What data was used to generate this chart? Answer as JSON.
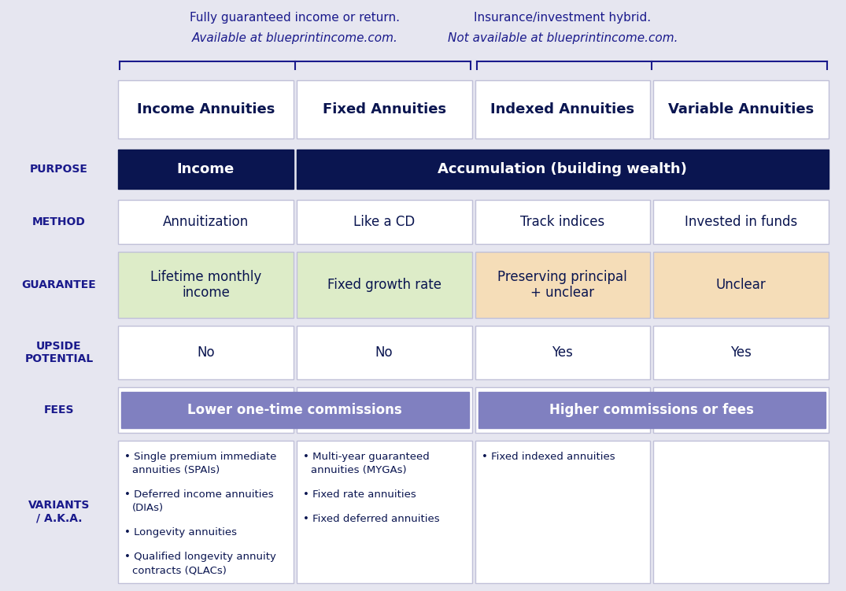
{
  "bg_color": "#e6e6f0",
  "dark_navy": "#0a1550",
  "white": "#ffffff",
  "text_blue": "#1a1a8c",
  "green_bg": "#ddecc8",
  "orange_bg": "#f5ddb8",
  "purple_bg": "#8080c0",
  "col_edge": "#c0c0d8",
  "top_label1": "Fully guaranteed income or return.",
  "top_label1_italic": "Available at blueprintincome.com.",
  "top_label2": "Insurance/investment hybrid.",
  "top_label2_italic": "Not available at blueprintincome.com.",
  "columns": [
    "Income Annuities",
    "Fixed Annuities",
    "Indexed Annuities",
    "Variable Annuities"
  ],
  "purpose_income": "Income",
  "purpose_accum": "Accumulation (building wealth)",
  "method_vals": [
    "Annuitization",
    "Like a CD",
    "Track indices",
    "Invested in funds"
  ],
  "guarantee_vals": [
    "Lifetime monthly\nincome",
    "Fixed growth rate",
    "Preserving principal\n+ unclear",
    "Unclear"
  ],
  "upside_vals": [
    "No",
    "No",
    "Yes",
    "Yes"
  ],
  "fees_left": "Lower one-time commissions",
  "fees_right": "Higher commissions or fees",
  "variants_col1": [
    "Single premium immediate\nannuities (SPAIs)",
    "Deferred income annuities\n(DIAs)",
    "Longevity annuities",
    "Qualified longevity annuity\ncontracts (QLACs)"
  ],
  "variants_col2": [
    "Multi-year guaranteed\nannuities (MYGAs)",
    "Fixed rate annuities",
    "Fixed deferred annuities"
  ],
  "variants_col3": [
    "Fixed indexed annuities"
  ],
  "variants_col4": []
}
